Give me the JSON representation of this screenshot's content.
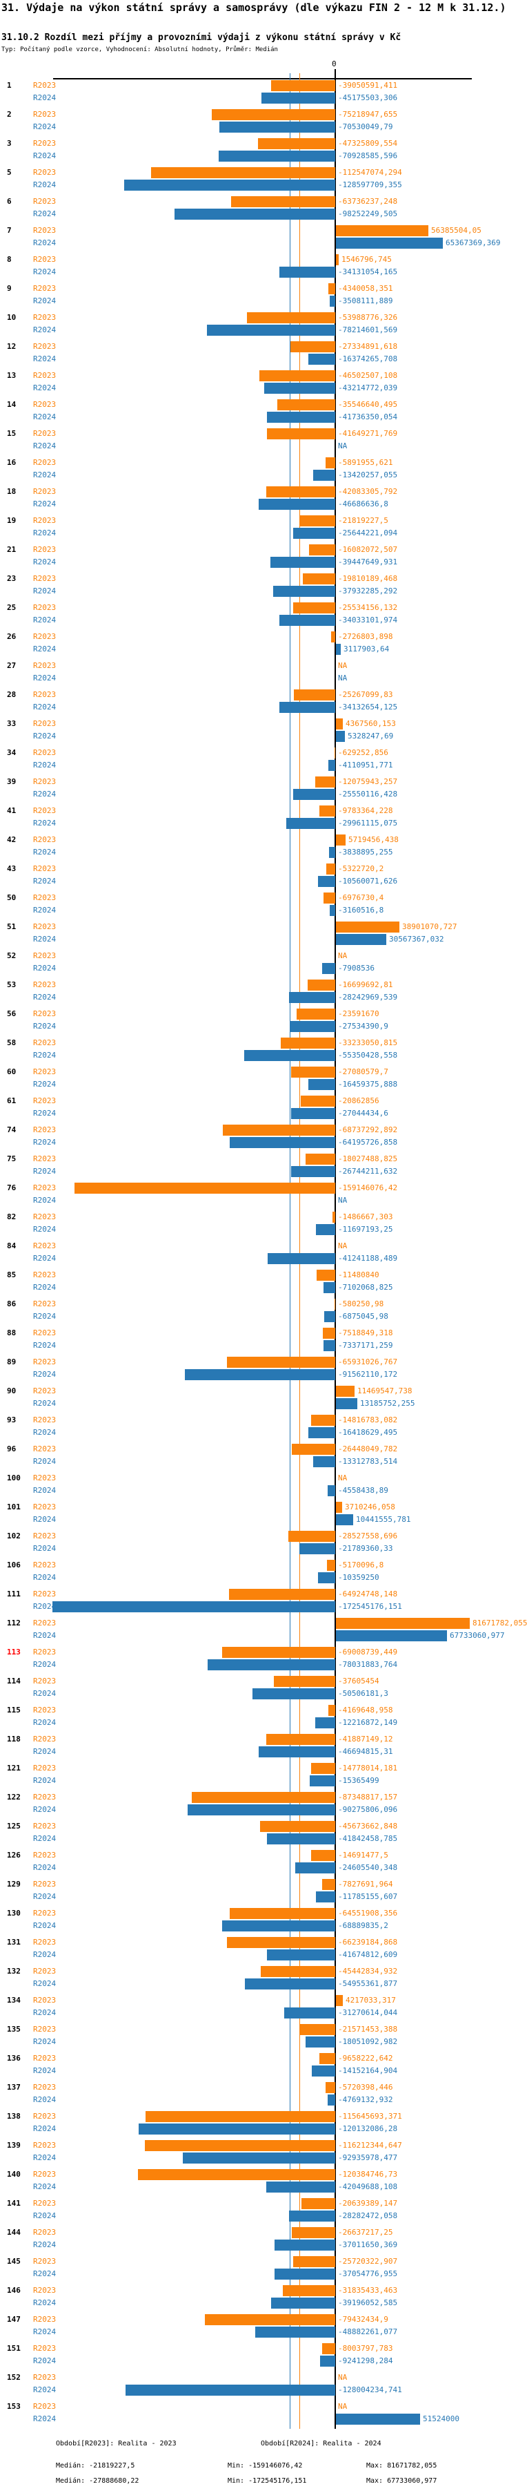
{
  "header": {
    "title": "31. Výdaje na výkon státní správy a samosprávy (dle výkazu FIN 2 - 12 M k 31.12.)",
    "subtitle": "31.10.2 Rozdíl mezi příjmy a provozními výdaji z výkonu státní správy v Kč",
    "meta": "Typ: Počítaný podle vzorce, Vyhodnocení: Absolutní hodnoty, Průměr: Medián"
  },
  "axis": {
    "zero_label": "0"
  },
  "na_label": "NA",
  "colors": {
    "r2023": "#FA820A",
    "r2024": "#2878B4",
    "highlight_row_number": "#FF0000",
    "axis": "#000000"
  },
  "chart_data": {
    "type": "bar",
    "orientation": "horizontal-diverging",
    "unit": "Kč",
    "series_names": [
      "R2023",
      "R2024"
    ],
    "legend_position": "bottom",
    "zero_axis": true,
    "median_lines": {
      "R2023": -21819227.5,
      "R2024": -27888680.22
    },
    "xlim": [
      -172545176.151,
      81671782.055
    ],
    "rows": [
      {
        "n": "1",
        "r2023": -39050591.411,
        "r2024": -45175503.306
      },
      {
        "n": "2",
        "r2023": -75218947.655,
        "r2024": -70530049.79
      },
      {
        "n": "3",
        "r2023": -47325809.554,
        "r2024": -70928585.596
      },
      {
        "n": "5",
        "r2023": -112547074.294,
        "r2024": -128597709.355
      },
      {
        "n": "6",
        "r2023": -63736237.248,
        "r2024": -98252249.505
      },
      {
        "n": "7",
        "r2023": 56385504.05,
        "r2024": 65367369.369
      },
      {
        "n": "8",
        "r2023": 1546796.745,
        "r2024": -34131054.165
      },
      {
        "n": "9",
        "r2023": -4340058.351,
        "r2024": -3508111.889
      },
      {
        "n": "10",
        "r2023": -53988776.326,
        "r2024": -78214601.569
      },
      {
        "n": "12",
        "r2023": -27334891.618,
        "r2024": -16374265.708
      },
      {
        "n": "13",
        "r2023": -46502507.108,
        "r2024": -43214772.039
      },
      {
        "n": "14",
        "r2023": -35546640.495,
        "r2024": -41736350.054
      },
      {
        "n": "15",
        "r2023": -41649271.769,
        "r2024": null
      },
      {
        "n": "16",
        "r2023": -5891955.621,
        "r2024": -13420257.055
      },
      {
        "n": "18",
        "r2023": -42083305.792,
        "r2024": -46686636.8
      },
      {
        "n": "19",
        "r2023": -21819227.5,
        "r2024": -25644221.094
      },
      {
        "n": "21",
        "r2023": -16082072.507,
        "r2024": -39447649.931
      },
      {
        "n": "23",
        "r2023": -19810189.468,
        "r2024": -37932285.292
      },
      {
        "n": "25",
        "r2023": -25534156.132,
        "r2024": -34033101.974
      },
      {
        "n": "26",
        "r2023": -2726803.898,
        "r2024": 3117903.64
      },
      {
        "n": "27",
        "r2023": null,
        "r2024": null
      },
      {
        "n": "28",
        "r2023": -25267099.83,
        "r2024": -34132654.125
      },
      {
        "n": "33",
        "r2023": 4367560.153,
        "r2024": 5328247.69
      },
      {
        "n": "34",
        "r2023": -629252.856,
        "r2024": -4110951.771
      },
      {
        "n": "39",
        "r2023": -12075943.257,
        "r2024": -25550116.428
      },
      {
        "n": "41",
        "r2023": -9783364.228,
        "r2024": -29961115.075
      },
      {
        "n": "42",
        "r2023": 5719456.438,
        "r2024": -3838895.255
      },
      {
        "n": "43",
        "r2023": -5322720.2,
        "r2024": -10560071.626
      },
      {
        "n": "50",
        "r2023": -6976730.4,
        "r2024": -3160516.8
      },
      {
        "n": "51",
        "r2023": 38901070.727,
        "r2024": 30567367.032
      },
      {
        "n": "52",
        "r2023": null,
        "r2024": -7908536
      },
      {
        "n": "53",
        "r2023": -16699692.81,
        "r2024": -28242969.539
      },
      {
        "n": "56",
        "r2023": -23591670,
        "r2024": -27534390.9
      },
      {
        "n": "58",
        "r2023": -33233050.815,
        "r2024": -55350428.558
      },
      {
        "n": "60",
        "r2023": -27080579.7,
        "r2024": -16459375.888
      },
      {
        "n": "61",
        "r2023": -20862856,
        "r2024": -27044434.6
      },
      {
        "n": "74",
        "r2023": -68737292.892,
        "r2024": -64195726.858
      },
      {
        "n": "75",
        "r2023": -18027488.825,
        "r2024": -26744211.632
      },
      {
        "n": "76",
        "r2023": -159146076.42,
        "r2024": null
      },
      {
        "n": "82",
        "r2023": -1486667.303,
        "r2024": -11697193.25
      },
      {
        "n": "84",
        "r2023": null,
        "r2024": -41241188.489
      },
      {
        "n": "85",
        "r2023": -11480840,
        "r2024": -7102068.825
      },
      {
        "n": "86",
        "r2023": -580250.98,
        "r2024": -6875045.98
      },
      {
        "n": "88",
        "r2023": -7518849.318,
        "r2024": -7337171.259
      },
      {
        "n": "89",
        "r2023": -65931026.767,
        "r2024": -91562110.172
      },
      {
        "n": "90",
        "r2023": 11469547.738,
        "r2024": 13185752.255
      },
      {
        "n": "93",
        "r2023": -14816783.082,
        "r2024": -16418629.495
      },
      {
        "n": "96",
        "r2023": -26448049.782,
        "r2024": -13312783.514
      },
      {
        "n": "100",
        "r2023": null,
        "r2024": -4558438.89
      },
      {
        "n": "101",
        "r2023": 3710246.058,
        "r2024": 10441555.781
      },
      {
        "n": "102",
        "r2023": -28527558.696,
        "r2024": -21789360.33
      },
      {
        "n": "106",
        "r2023": -5170096.8,
        "r2024": -10359250
      },
      {
        "n": "111",
        "r2023": -64924748.148,
        "r2024": -172545176.151
      },
      {
        "n": "112",
        "r2023": 81671782.055,
        "r2024": 67733060.977
      },
      {
        "n": "113",
        "highlight": true,
        "r2023": -69008739.449,
        "r2024": -78031883.764
      },
      {
        "n": "114",
        "r2023": -37605454,
        "r2024": -50506181.3
      },
      {
        "n": "115",
        "r2023": -4169648.958,
        "r2024": -12216872.149
      },
      {
        "n": "118",
        "r2023": -41887149.12,
        "r2024": -46694815.31
      },
      {
        "n": "121",
        "r2023": -14778014.181,
        "r2024": -15365499
      },
      {
        "n": "122",
        "r2023": -87348817.157,
        "r2024": -90275806.096
      },
      {
        "n": "125",
        "r2023": -45673662.848,
        "r2024": -41842458.785
      },
      {
        "n": "126",
        "r2023": -14691477.5,
        "r2024": -24605540.348
      },
      {
        "n": "129",
        "r2023": -7827691.964,
        "r2024": -11785155.607
      },
      {
        "n": "130",
        "r2023": -64551908.356,
        "r2024": -68889835.2
      },
      {
        "n": "131",
        "r2023": -66239184.868,
        "r2024": -41674812.609
      },
      {
        "n": "132",
        "r2023": -45442834.932,
        "r2024": -54955361.877
      },
      {
        "n": "134",
        "r2023": 4217033.317,
        "r2024": -31270614.044
      },
      {
        "n": "135",
        "r2023": -21571453.388,
        "r2024": -18051092.982
      },
      {
        "n": "136",
        "r2023": -9658222.642,
        "r2024": -14152164.904
      },
      {
        "n": "137",
        "r2023": -5720398.446,
        "r2024": -4769132.932
      },
      {
        "n": "138",
        "r2023": -115645693.371,
        "r2024": -120132086.28
      },
      {
        "n": "139",
        "r2023": -116212344.647,
        "r2024": -92935978.477
      },
      {
        "n": "140",
        "r2023": -120384746.73,
        "r2024": -42049688.108
      },
      {
        "n": "141",
        "r2023": -20639389.147,
        "r2024": -28282472.058
      },
      {
        "n": "144",
        "r2023": -26637217.25,
        "r2024": -37011650.369
      },
      {
        "n": "145",
        "r2023": -25720322.907,
        "r2024": -37054776.955
      },
      {
        "n": "146",
        "r2023": -31835433.463,
        "r2024": -39196052.585
      },
      {
        "n": "147",
        "r2023": -79432434.9,
        "r2024": -48882261.077
      },
      {
        "n": "151",
        "r2023": -8003797.783,
        "r2024": -9241298.284
      },
      {
        "n": "152",
        "r2023": null,
        "r2024": -128004234.741
      },
      {
        "n": "153",
        "r2023": null,
        "r2024": 51524000
      }
    ],
    "stats": {
      "r2023": {
        "median": -21819227.5,
        "min": -159146076.42,
        "max": 81671782.055
      },
      "r2024": {
        "median": -27888680.22,
        "min": -172545176.151,
        "max": 67733060.977
      }
    }
  },
  "footer": {
    "legend_r2023": "Období[R2023]: Realita - 2023",
    "legend_r2024": "Období[R2024]: Realita - 2024",
    "stats_r2023": {
      "median": "Medián: -21819227,5",
      "min": "Min: -159146076,42",
      "max": "Max: 81671782,055"
    },
    "stats_r2024": {
      "median": "Medián: -27888680,22",
      "min": "Min: -172545176,151",
      "max": "Max: 67733060,977"
    }
  }
}
